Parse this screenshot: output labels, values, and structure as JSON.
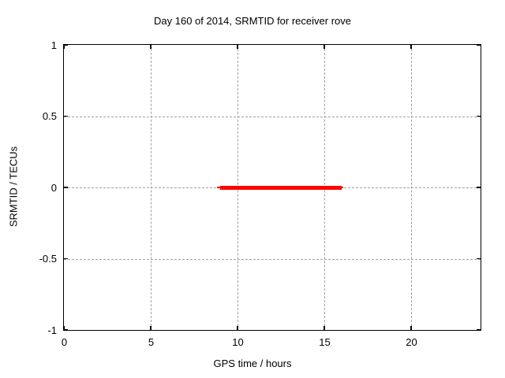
{
  "chart_data": {
    "type": "line",
    "title": "Day 160 of 2014, SRMTID for receiver rove",
    "xlabel": "GPS time / hours",
    "ylabel": "SRMTID / TECUs",
    "xlim": [
      0,
      24
    ],
    "ylim": [
      -1,
      1
    ],
    "xticks": [
      0,
      5,
      10,
      15,
      20
    ],
    "yticks": [
      -1,
      -0.5,
      0,
      0.5,
      1
    ],
    "grid": "dashed",
    "grid_color": "#a0a0a0",
    "border_color": "#000000",
    "background_color": "#ffffff",
    "legend": "none",
    "series": [
      {
        "name": "SRMTID",
        "color": "#ff0000",
        "y_constant": 0,
        "x_start": 8.8,
        "x_end": 16.1,
        "x_thick_start": 9.0,
        "x_thick_end": 16.0
      }
    ]
  }
}
